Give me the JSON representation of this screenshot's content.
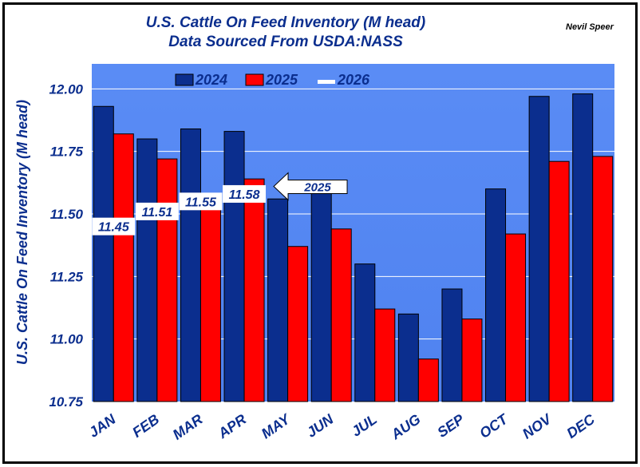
{
  "chart_data": {
    "type": "bar",
    "title_line1": "U.S. Cattle On Feed Inventory (M head)",
    "title_line2": "Data Sourced From USDA:NASS",
    "author": "Nevil Speer",
    "ylabel": "U.S. Cattle On Feed Inventory (M head)",
    "ylim": [
      10.75,
      12.1
    ],
    "yticks": [
      10.75,
      11.0,
      11.25,
      11.5,
      11.75,
      12.0
    ],
    "ytick_labels": [
      "10.75",
      "11.00",
      "11.25",
      "11.50",
      "11.75",
      "12.00"
    ],
    "categories": [
      "JAN",
      "FEB",
      "MAR",
      "APR",
      "MAY",
      "JUN",
      "JUL",
      "AUG",
      "SEP",
      "OCT",
      "NOV",
      "DEC"
    ],
    "series": [
      {
        "name": "2024",
        "color": "#0b2e8e",
        "values": [
          11.93,
          11.8,
          11.84,
          11.83,
          11.56,
          11.6,
          11.3,
          11.1,
          11.2,
          11.6,
          11.97,
          11.98
        ]
      },
      {
        "name": "2025",
        "color": "#ff0000",
        "values": [
          11.82,
          11.72,
          11.55,
          11.64,
          11.37,
          11.44,
          11.12,
          10.92,
          11.08,
          11.42,
          11.71,
          11.73
        ]
      },
      {
        "name": "2026",
        "color": "#ffffff",
        "values": [
          11.45,
          11.51,
          11.55,
          11.58,
          null,
          null,
          null,
          null,
          null,
          null,
          null,
          null
        ]
      }
    ],
    "data_labels_2026": [
      "11.45",
      "11.51",
      "11.55",
      "11.58"
    ],
    "annotation": {
      "text": "2025",
      "points_to": "APR"
    },
    "grid": true,
    "legend": "top",
    "plot_bg": "#5b8cf5"
  }
}
